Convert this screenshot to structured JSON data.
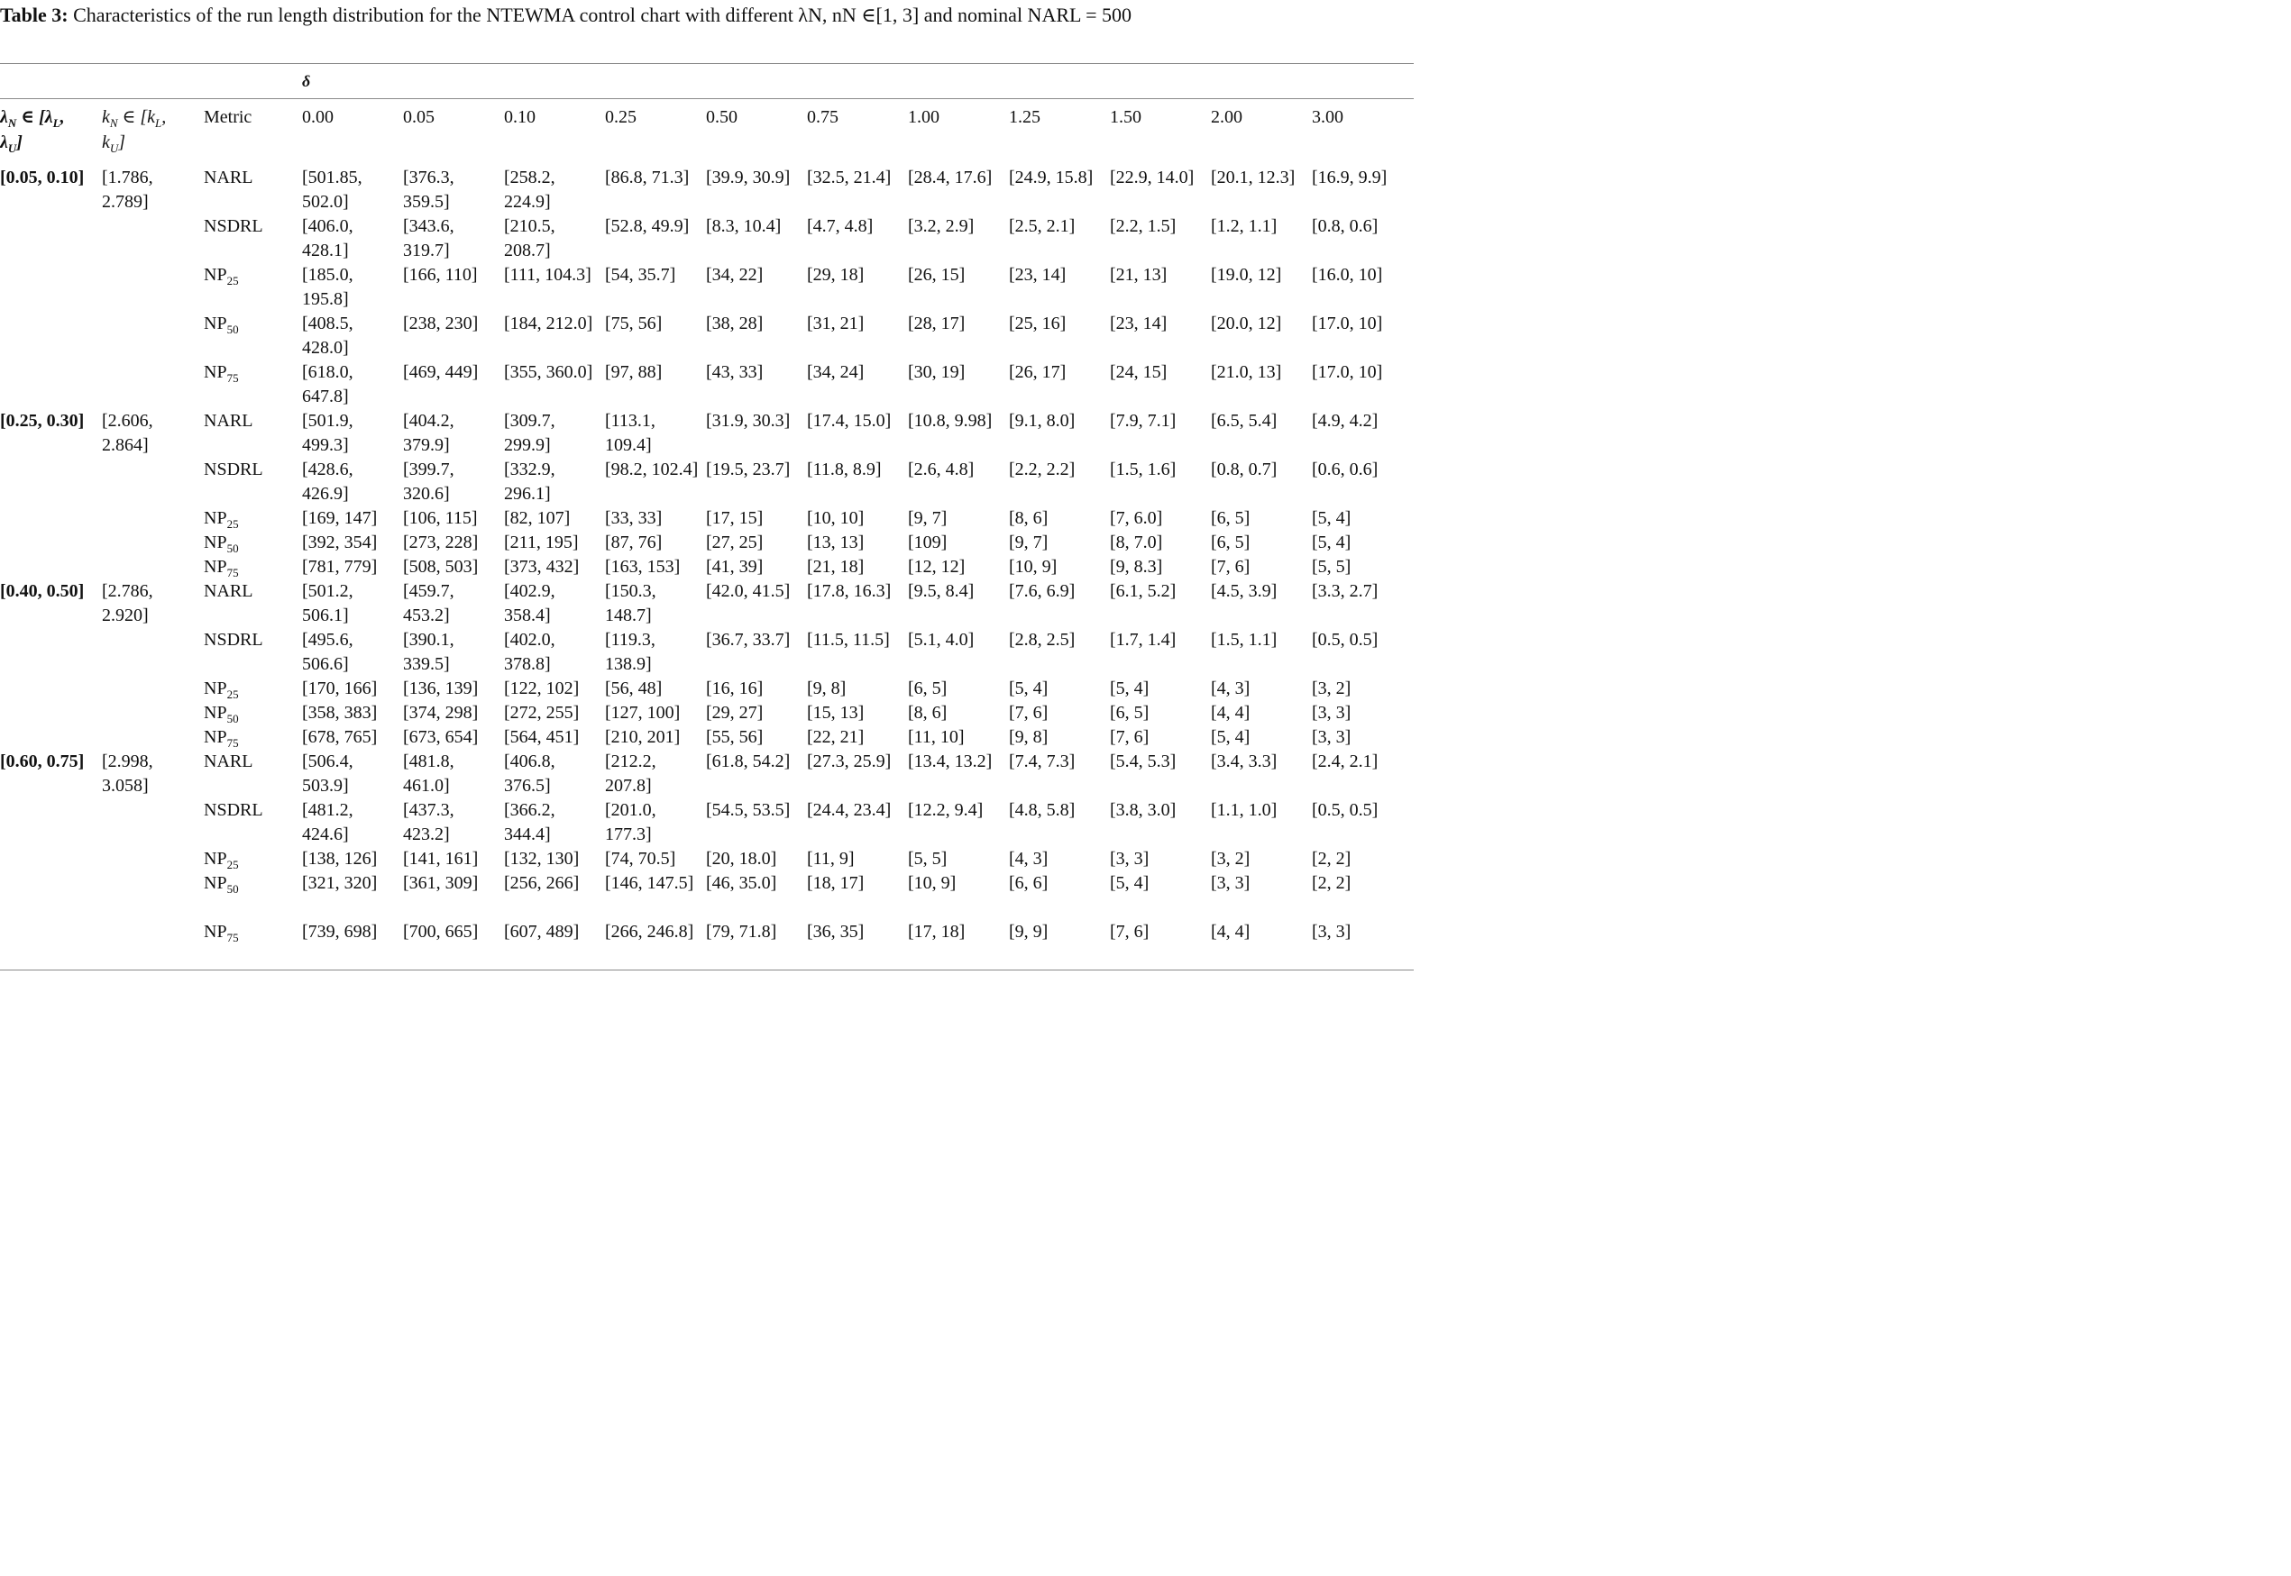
{
  "caption": {
    "label": "Table 3:",
    "text": "Characteristics of the run length distribution for the NTEWMA control chart with different λN, nN ∈[1, 3] and nominal NARL = 500"
  },
  "table": {
    "delta_symbol": "δ",
    "col_headers": {
      "lambda": "λN ∈ [λL, λU]",
      "k": "kN ∈ [kL, kU]",
      "metric": "Metric",
      "deltas": [
        "0.00",
        "0.05",
        "0.10",
        "0.25",
        "0.50",
        "0.75",
        "1.00",
        "1.25",
        "1.50",
        "2.00",
        "3.00"
      ]
    },
    "groups": [
      {
        "lambda": "[0.05, 0.10]",
        "k": "[1.786, 2.789]",
        "rows": [
          {
            "metric": "NARL",
            "values": [
              "[501.85, 502.0]",
              "[376.3, 359.5]",
              "[258.2, 224.9]",
              "[86.8, 71.3]",
              "[39.9, 30.9]",
              "[32.5, 21.4]",
              "[28.4, 17.6]",
              "[24.9, 15.8]",
              "[22.9, 14.0]",
              "[20.1, 12.3]",
              "[16.9, 9.9]"
            ]
          },
          {
            "metric": "NSDRL",
            "values": [
              "[406.0, 428.1]",
              "[343.6, 319.7]",
              "[210.5, 208.7]",
              "[52.8, 49.9]",
              "[8.3, 10.4]",
              "[4.7, 4.8]",
              "[3.2, 2.9]",
              "[2.5, 2.1]",
              "[2.2, 1.5]",
              "[1.2, 1.1]",
              "[0.8, 0.6]"
            ]
          },
          {
            "metric": "NP25",
            "values": [
              "[185.0, 195.8]",
              "[166, 110]",
              "[111, 104.3]",
              "[54, 35.7]",
              "[34, 22]",
              "[29, 18]",
              "[26, 15]",
              "[23, 14]",
              "[21, 13]",
              "[19.0, 12]",
              "[16.0, 10]"
            ]
          },
          {
            "metric": "NP50",
            "values": [
              "[408.5, 428.0]",
              "[238, 230]",
              "[184, 212.0]",
              "[75, 56]",
              "[38, 28]",
              "[31, 21]",
              "[28, 17]",
              "[25, 16]",
              "[23, 14]",
              "[20.0, 12]",
              "[17.0, 10]"
            ]
          },
          {
            "metric": "NP75",
            "values": [
              "[618.0, 647.8]",
              "[469, 449]",
              "[355, 360.0]",
              "[97, 88]",
              "[43, 33]",
              "[34, 24]",
              "[30, 19]",
              "[26, 17]",
              "[24, 15]",
              "[21.0, 13]",
              "[17.0, 10]"
            ]
          }
        ]
      },
      {
        "lambda": "[0.25, 0.30]",
        "k": "[2.606, 2.864]",
        "rows": [
          {
            "metric": "NARL",
            "values": [
              "[501.9, 499.3]",
              "[404.2, 379.9]",
              "[309.7, 299.9]",
              "[113.1, 109.4]",
              "[31.9, 30.3]",
              "[17.4, 15.0]",
              "[10.8, 9.98]",
              "[9.1, 8.0]",
              "[7.9, 7.1]",
              "[6.5, 5.4]",
              "[4.9, 4.2]"
            ]
          },
          {
            "metric": "NSDRL",
            "values": [
              "[428.6, 426.9]",
              "[399.7, 320.6]",
              "[332.9, 296.1]",
              "[98.2, 102.4]",
              "[19.5, 23.7]",
              "[11.8, 8.9]",
              "[2.6, 4.8]",
              "[2.2, 2.2]",
              "[1.5, 1.6]",
              "[0.8, 0.7]",
              "[0.6, 0.6]"
            ]
          },
          {
            "metric": "NP25",
            "values": [
              "[169, 147]",
              "[106, 115]",
              "[82, 107]",
              "[33, 33]",
              "[17, 15]",
              "[10, 10]",
              "[9, 7]",
              "[8, 6]",
              "[7, 6.0]",
              "[6, 5]",
              "[5, 4]"
            ]
          },
          {
            "metric": "NP50",
            "values": [
              "[392, 354]",
              "[273, 228]",
              "[211, 195]",
              "[87, 76]",
              "[27, 25]",
              "[13, 13]",
              "[109]",
              "[9, 7]",
              "[8, 7.0]",
              "[6, 5]",
              "[5, 4]"
            ]
          },
          {
            "metric": "NP75",
            "values": [
              "[781, 779]",
              "[508, 503]",
              "[373, 432]",
              "[163, 153]",
              "[41, 39]",
              "[21, 18]",
              "[12, 12]",
              "[10, 9]",
              "[9, 8.3]",
              "[7, 6]",
              "[5, 5]"
            ]
          }
        ]
      },
      {
        "lambda": "[0.40, 0.50]",
        "k": "[2.786, 2.920]",
        "rows": [
          {
            "metric": "NARL",
            "values": [
              "[501.2, 506.1]",
              "[459.7, 453.2]",
              "[402.9, 358.4]",
              "[150.3, 148.7]",
              "[42.0, 41.5]",
              "[17.8, 16.3]",
              "[9.5, 8.4]",
              "[7.6, 6.9]",
              "[6.1, 5.2]",
              "[4.5, 3.9]",
              "[3.3, 2.7]"
            ]
          },
          {
            "metric": "NSDRL",
            "values": [
              "[495.6, 506.6]",
              "[390.1, 339.5]",
              "[402.0, 378.8]",
              "[119.3, 138.9]",
              "[36.7, 33.7]",
              "[11.5, 11.5]",
              "[5.1, 4.0]",
              "[2.8, 2.5]",
              "[1.7, 1.4]",
              "[1.5, 1.1]",
              "[0.5, 0.5]"
            ]
          },
          {
            "metric": "NP25",
            "values": [
              "[170, 166]",
              "[136, 139]",
              "[122, 102]",
              "[56, 48]",
              "[16, 16]",
              "[9, 8]",
              "[6, 5]",
              "[5, 4]",
              "[5, 4]",
              "[4, 3]",
              "[3, 2]"
            ]
          },
          {
            "metric": "NP50",
            "values": [
              "[358, 383]",
              "[374, 298]",
              "[272, 255]",
              "[127, 100]",
              "[29, 27]",
              "[15, 13]",
              "[8, 6]",
              "[7, 6]",
              "[6, 5]",
              "[4, 4]",
              "[3, 3]"
            ]
          },
          {
            "metric": "NP75",
            "values": [
              "[678, 765]",
              "[673, 654]",
              "[564, 451]",
              "[210, 201]",
              "[55, 56]",
              "[22, 21]",
              "[11, 10]",
              "[9, 8]",
              "[7, 6]",
              "[5, 4]",
              "[3, 3]"
            ]
          }
        ]
      },
      {
        "lambda": "[0.60, 0.75]",
        "k": "[2.998, 3.058]",
        "rows": [
          {
            "metric": "NARL",
            "values": [
              "[506.4, 503.9]",
              "[481.8, 461.0]",
              "[406.8, 376.5]",
              "[212.2, 207.8]",
              "[61.8, 54.2]",
              "[27.3, 25.9]",
              "[13.4, 13.2]",
              "[7.4, 7.3]",
              "[5.4, 5.3]",
              "[3.4, 3.3]",
              "[2.4, 2.1]"
            ]
          },
          {
            "metric": "NSDRL",
            "values": [
              "[481.2, 424.6]",
              "[437.3, 423.2]",
              "[366.2, 344.4]",
              "[201.0, 177.3]",
              "[54.5, 53.5]",
              "[24.4, 23.4]",
              "[12.2, 9.4]",
              "[4.8, 5.8]",
              "[3.8, 3.0]",
              "[1.1, 1.0]",
              "[0.5, 0.5]"
            ]
          },
          {
            "metric": "NP25",
            "values": [
              "[138, 126]",
              "[141, 161]",
              "[132, 130]",
              "[74, 70.5]",
              "[20, 18.0]",
              "[11, 9]",
              "[5, 5]",
              "[4, 3]",
              "[3, 3]",
              "[3, 2]",
              "[2, 2]"
            ]
          },
          {
            "metric": "NP50",
            "values": [
              "[321, 320]",
              "[361, 309]",
              "[256, 266]",
              "[146, 147.5]",
              "[46, 35.0]",
              "[18, 17]",
              "[10, 9]",
              "[6, 6]",
              "[5, 4]",
              "[3, 3]",
              "[2, 2]"
            ]
          },
          {
            "metric": "NP75",
            "values": [
              "[739, 698]",
              "[700, 665]",
              "[607, 489]",
              "[266, 246.8]",
              "[79, 71.8]",
              "[36, 35]",
              "[17, 18]",
              "[9, 9]",
              "[7, 6]",
              "[4, 4]",
              "[3, 3]"
            ]
          }
        ]
      }
    ]
  }
}
